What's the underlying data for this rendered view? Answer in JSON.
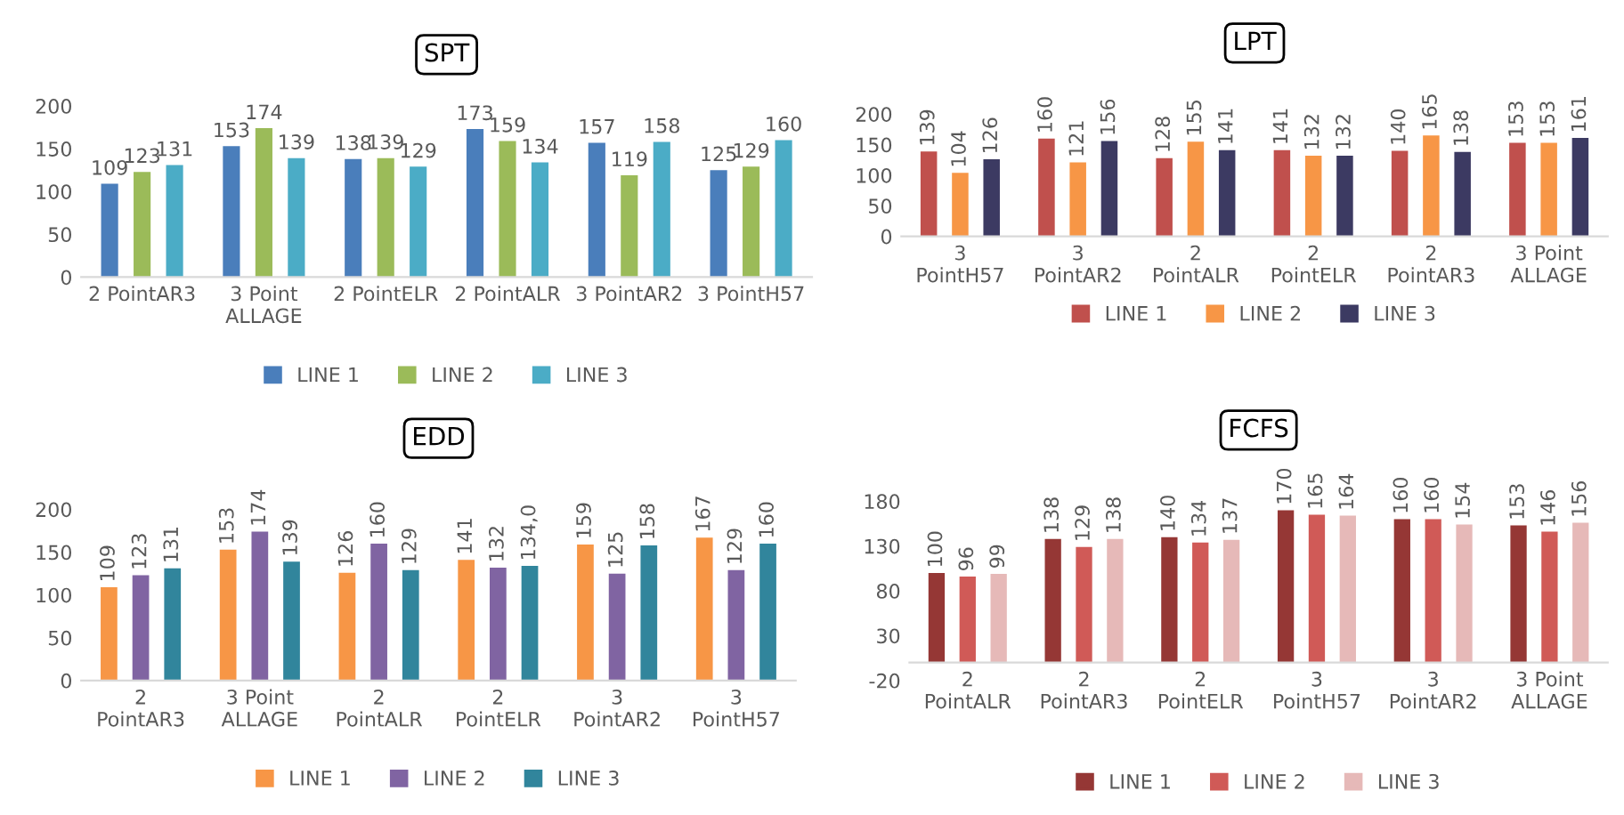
{
  "chart_data": [
    {
      "type": "bar",
      "title": "SPT",
      "categories": [
        "2 PointAR3",
        "3 Point\nALLAGE",
        "2 PointELR",
        "2 PointALR",
        "3 PointAR2",
        "3 PointH57"
      ],
      "ylim": [
        0,
        200
      ],
      "yticks": [
        0,
        50,
        100,
        150,
        200
      ],
      "grid": false,
      "legend": "bottom",
      "data_labels": true,
      "series": [
        {
          "name": "LINE 1",
          "color": "#4a7ebb",
          "values": [
            109,
            153,
            138,
            173,
            157,
            125
          ]
        },
        {
          "name": "LINE 2",
          "color": "#9bbb59",
          "values": [
            123,
            174,
            139,
            159,
            119,
            129
          ]
        },
        {
          "name": "LINE 3",
          "color": "#4bacc6",
          "values": [
            131,
            139,
            129,
            134,
            158,
            160
          ]
        }
      ]
    },
    {
      "type": "bar",
      "title": "LPT",
      "categories": [
        "3\nPointH57",
        "3\nPointAR2",
        "2\nPointALR",
        "2\nPointELR",
        "2\nPointAR3",
        "3 Point\nALLAGE"
      ],
      "ylim": [
        0,
        200
      ],
      "yticks": [
        0,
        50,
        100,
        150,
        200
      ],
      "grid": false,
      "legend": "bottom",
      "data_labels": true,
      "series": [
        {
          "name": "LINE 1",
          "color": "#c0504d",
          "values": [
            139,
            160,
            128,
            141,
            140,
            153
          ]
        },
        {
          "name": "LINE 2",
          "color": "#f79646",
          "values": [
            104,
            121,
            155,
            132,
            165,
            153
          ]
        },
        {
          "name": "LINE 3",
          "color": "#3c3a62",
          "values": [
            126,
            156,
            141,
            132,
            138,
            161
          ]
        }
      ]
    },
    {
      "type": "bar",
      "title": "EDD",
      "categories": [
        "2\nPointAR3",
        "3 Point\nALLAGE",
        "2\nPointALR",
        "2\nPointELR",
        "3\nPointAR2",
        "3\nPointH57"
      ],
      "ylim": [
        0,
        200
      ],
      "yticks": [
        0,
        50,
        100,
        150,
        200
      ],
      "grid": false,
      "legend": "bottom",
      "series": [
        {
          "name": "LINE 1",
          "color": "#f79646",
          "values": [
            109,
            153,
            126,
            141,
            159,
            167
          ],
          "value_labels": [
            "109",
            "153",
            "126",
            "141",
            "159",
            "167"
          ]
        },
        {
          "name": "LINE 2",
          "color": "#8064a2",
          "values": [
            123,
            174,
            160,
            132,
            125,
            129
          ],
          "value_labels": [
            "123",
            "174",
            "160",
            "132",
            "125",
            "129"
          ]
        },
        {
          "name": "LINE 3",
          "color": "#31859c",
          "values": [
            131,
            139,
            129,
            134,
            158,
            160
          ],
          "value_labels": [
            "131",
            "139",
            "129",
            "134,0",
            "158",
            "160"
          ]
        }
      ]
    },
    {
      "type": "bar",
      "title": "FCFS",
      "categories": [
        "2\nPointALR",
        "2\nPointAR3",
        "2\nPointELR",
        "3\nPointH57",
        "3\nPointAR2",
        "3 Point\nALLAGE"
      ],
      "ylim": [
        -20,
        180
      ],
      "yticks": [
        -20,
        30,
        80,
        130,
        180
      ],
      "grid": false,
      "legend": "bottom",
      "data_labels": true,
      "series": [
        {
          "name": "LINE 1",
          "color": "#953735",
          "values": [
            100,
            138,
            140,
            170,
            160,
            153
          ]
        },
        {
          "name": "LINE 2",
          "color": "#d05a57",
          "values": [
            96,
            129,
            134,
            165,
            160,
            146
          ]
        },
        {
          "name": "LINE 3",
          "color": "#e6b9b8",
          "values": [
            99,
            138,
            137,
            164,
            154,
            156
          ]
        }
      ]
    }
  ]
}
